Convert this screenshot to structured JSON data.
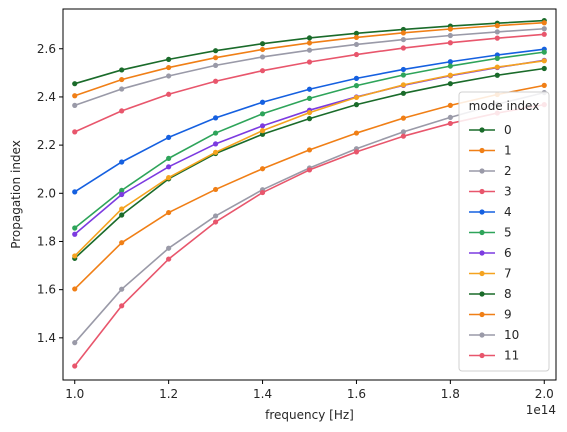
{
  "chart_data": {
    "type": "line",
    "xlabel": "frequency [Hz]",
    "ylabel": "Propagation index",
    "x_offset_label": "1e14",
    "xlim": [
      0.975,
      2.025
    ],
    "ylim": [
      1.225,
      2.765
    ],
    "x_ticks": [
      1.0,
      1.2,
      1.4,
      1.6,
      1.8,
      2.0
    ],
    "x_tick_labels": [
      "1.0",
      "1.2",
      "1.4",
      "1.6",
      "1.8",
      "2.0"
    ],
    "y_ticks": [
      1.4,
      1.6,
      1.8,
      2.0,
      2.2,
      2.4,
      2.6
    ],
    "y_tick_labels": [
      "1.4",
      "1.6",
      "1.8",
      "2.0",
      "2.2",
      "2.4",
      "2.6"
    ],
    "x": [
      1.0,
      1.1,
      1.2,
      1.3,
      1.4,
      1.5,
      1.6,
      1.7,
      1.8,
      1.9,
      2.0
    ],
    "legend": {
      "title": "mode index",
      "placement": "lower right"
    },
    "series": [
      {
        "name": "0",
        "color": "#1a6b2a",
        "values": [
          1.73,
          1.91,
          2.06,
          2.165,
          2.245,
          2.31,
          2.368,
          2.415,
          2.455,
          2.49,
          2.518
        ]
      },
      {
        "name": "1",
        "color": "#f07f16",
        "values": [
          1.603,
          1.795,
          1.92,
          2.016,
          2.102,
          2.18,
          2.25,
          2.312,
          2.365,
          2.41,
          2.448
        ]
      },
      {
        "name": "2",
        "color": "#9a9aa8",
        "values": [
          1.38,
          1.602,
          1.772,
          1.906,
          2.015,
          2.105,
          2.185,
          2.255,
          2.315,
          2.37,
          2.418
        ]
      },
      {
        "name": "3",
        "color": "#e8566c",
        "values": [
          1.283,
          1.533,
          1.727,
          1.881,
          2.003,
          2.097,
          2.172,
          2.237,
          2.29,
          2.333,
          2.368
        ]
      },
      {
        "name": "4",
        "color": "#1560e0",
        "values": [
          2.006,
          2.13,
          2.232,
          2.313,
          2.378,
          2.432,
          2.477,
          2.514,
          2.546,
          2.574,
          2.598
        ]
      },
      {
        "name": "5",
        "color": "#2ea45a",
        "values": [
          1.856,
          2.012,
          2.145,
          2.25,
          2.33,
          2.394,
          2.447,
          2.491,
          2.528,
          2.56,
          2.586
        ]
      },
      {
        "name": "6",
        "color": "#7c3be0",
        "values": [
          1.83,
          1.995,
          2.11,
          2.205,
          2.28,
          2.345,
          2.4,
          2.448,
          2.488,
          2.522,
          2.552
        ]
      },
      {
        "name": "7",
        "color": "#f5a31f",
        "values": [
          1.74,
          1.935,
          2.065,
          2.17,
          2.26,
          2.335,
          2.398,
          2.45,
          2.49,
          2.524,
          2.55
        ]
      },
      {
        "name": "8",
        "color": "#1a6b2a",
        "values": [
          2.455,
          2.512,
          2.556,
          2.592,
          2.621,
          2.645,
          2.664,
          2.68,
          2.694,
          2.706,
          2.717
        ]
      },
      {
        "name": "9",
        "color": "#f07f16",
        "values": [
          2.405,
          2.472,
          2.522,
          2.563,
          2.597,
          2.624,
          2.647,
          2.666,
          2.682,
          2.696,
          2.708
        ]
      },
      {
        "name": "10",
        "color": "#9a9aa8",
        "values": [
          2.365,
          2.433,
          2.487,
          2.531,
          2.566,
          2.594,
          2.618,
          2.638,
          2.655,
          2.67,
          2.683
        ]
      },
      {
        "name": "11",
        "color": "#e8566c",
        "values": [
          2.255,
          2.342,
          2.411,
          2.465,
          2.509,
          2.545,
          2.576,
          2.603,
          2.625,
          2.644,
          2.66
        ]
      }
    ]
  }
}
